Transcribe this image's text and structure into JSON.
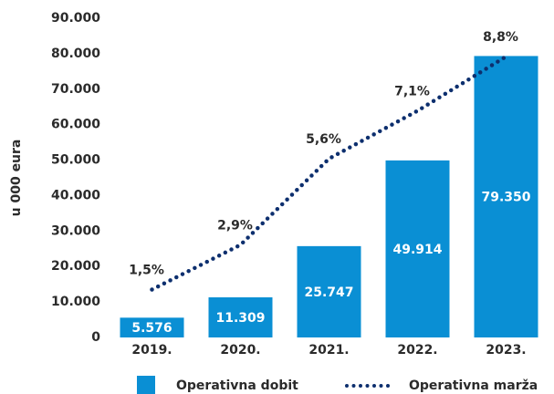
{
  "chart_data": {
    "type": "bar",
    "y_axis_label": "u 000 eura",
    "categories": [
      "2019.",
      "2020.",
      "2021.",
      "2022.",
      "2023."
    ],
    "series": [
      {
        "name": "Operativna dobit",
        "type": "bar",
        "color": "#0a8fd4",
        "values": [
          5576,
          11309,
          25747,
          49914,
          79350
        ],
        "value_labels": [
          "5.576",
          "11.309",
          "25.747",
          "49.914",
          "79.350"
        ]
      },
      {
        "name": "Operativna marža",
        "type": "line",
        "axis": "y2",
        "color": "#0d2f6e",
        "values": [
          1.5,
          2.9,
          5.6,
          7.1,
          8.8
        ],
        "value_labels": [
          "1,5%",
          "2,9%",
          "5,6%",
          "7,1%",
          "8,8%"
        ]
      }
    ],
    "ylim": [
      0,
      90000
    ],
    "yticks": [
      0,
      {
        "value": 10000,
        "label": "10.000"
      },
      {
        "value": 20000,
        "label": "20.000"
      },
      {
        "value": 30000,
        "label": "30.000"
      },
      {
        "value": 40000,
        "label": "40.000"
      },
      {
        "value": 50000,
        "label": "50.000"
      },
      {
        "value": 60000,
        "label": "60.000"
      },
      {
        "value": 70000,
        "label": "70.000"
      },
      {
        "value": 80000,
        "label": "80.000"
      },
      {
        "value": 90000,
        "label": "90.000"
      }
    ],
    "y2lim": [
      0,
      10
    ],
    "legend": "bottom"
  }
}
